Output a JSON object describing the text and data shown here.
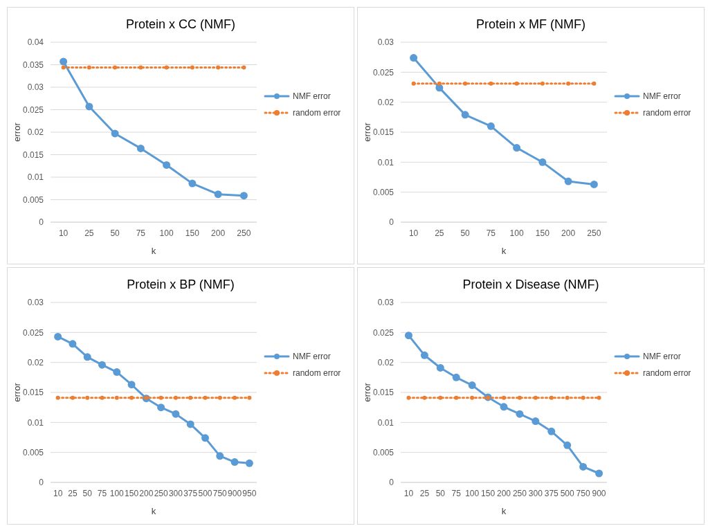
{
  "chart_data": [
    {
      "type": "line",
      "title": "Protein x CC (NMF)",
      "xlabel": "k",
      "ylabel": "error",
      "categories": [
        "10",
        "25",
        "50",
        "75",
        "100",
        "150",
        "200",
        "250"
      ],
      "ylim": [
        0,
        0.04
      ],
      "yticks": [
        0,
        0.005,
        0.01,
        0.015,
        0.02,
        0.025,
        0.03,
        0.035,
        0.04
      ],
      "grid": "y",
      "legend": "right",
      "series": [
        {
          "name": "NMF error",
          "color": "#5b9bd5",
          "marker": "circle",
          "line_style": "solid",
          "values": [
            0.0357,
            0.0257,
            0.0197,
            0.0164,
            0.0127,
            0.0086,
            0.0062,
            0.0059
          ]
        },
        {
          "name": "random error",
          "color": "#ed7d31",
          "marker": "circle",
          "line_style": "dotted",
          "values": [
            0.0344,
            0.0344,
            0.0344,
            0.0344,
            0.0344,
            0.0344,
            0.0344,
            0.0344
          ]
        }
      ]
    },
    {
      "type": "line",
      "title": "Protein x MF (NMF)",
      "xlabel": "k",
      "ylabel": "error",
      "categories": [
        "10",
        "25",
        "50",
        "75",
        "100",
        "150",
        "200",
        "250"
      ],
      "ylim": [
        0,
        0.03
      ],
      "yticks": [
        0,
        0.005,
        0.01,
        0.015,
        0.02,
        0.025,
        0.03
      ],
      "grid": "y",
      "legend": "right",
      "series": [
        {
          "name": "NMF error",
          "color": "#5b9bd5",
          "marker": "circle",
          "line_style": "solid",
          "values": [
            0.0274,
            0.0224,
            0.0179,
            0.016,
            0.0124,
            0.01,
            0.0068,
            0.0063
          ]
        },
        {
          "name": "random error",
          "color": "#ed7d31",
          "marker": "circle",
          "line_style": "dotted",
          "values": [
            0.0231,
            0.0231,
            0.0231,
            0.0231,
            0.0231,
            0.0231,
            0.0231,
            0.0231
          ]
        }
      ]
    },
    {
      "type": "line",
      "title": "Protein x BP (NMF)",
      "xlabel": "k",
      "ylabel": "error",
      "categories": [
        "10",
        "25",
        "50",
        "75",
        "100",
        "150",
        "200",
        "250",
        "300",
        "375",
        "500",
        "750",
        "900",
        "950"
      ],
      "ylim": [
        0,
        0.03
      ],
      "yticks": [
        0,
        0.005,
        0.01,
        0.015,
        0.02,
        0.025,
        0.03
      ],
      "grid": "y",
      "legend": "right",
      "series": [
        {
          "name": "NMF error",
          "color": "#5b9bd5",
          "marker": "circle",
          "line_style": "solid",
          "values": [
            0.0243,
            0.0231,
            0.0209,
            0.0196,
            0.0184,
            0.0163,
            0.014,
            0.0125,
            0.0114,
            0.0097,
            0.0074,
            0.0044,
            0.0034,
            0.0032
          ]
        },
        {
          "name": "random error",
          "color": "#ed7d31",
          "marker": "circle",
          "line_style": "dotted",
          "values": [
            0.0141,
            0.0141,
            0.0141,
            0.0141,
            0.0141,
            0.0141,
            0.0141,
            0.0141,
            0.0141,
            0.0141,
            0.0141,
            0.0141,
            0.0141,
            0.0141
          ]
        }
      ]
    },
    {
      "type": "line",
      "title": "Protein x Disease (NMF)",
      "xlabel": "k",
      "ylabel": "error",
      "categories": [
        "10",
        "25",
        "50",
        "75",
        "100",
        "150",
        "200",
        "250",
        "300",
        "375",
        "500",
        "750",
        "900"
      ],
      "ylim": [
        0,
        0.03
      ],
      "yticks": [
        0,
        0.005,
        0.01,
        0.015,
        0.02,
        0.025,
        0.03
      ],
      "grid": "y",
      "legend": "right",
      "series": [
        {
          "name": "NMF error",
          "color": "#5b9bd5",
          "marker": "circle",
          "line_style": "solid",
          "values": [
            0.0245,
            0.0212,
            0.0191,
            0.0175,
            0.0162,
            0.0142,
            0.0126,
            0.0114,
            0.0102,
            0.0085,
            0.0062,
            0.0026,
            0.0015
          ]
        },
        {
          "name": "random error",
          "color": "#ed7d31",
          "marker": "circle",
          "line_style": "dotted",
          "values": [
            0.0141,
            0.0141,
            0.0141,
            0.0141,
            0.0141,
            0.0141,
            0.0141,
            0.0141,
            0.0141,
            0.0141,
            0.0141,
            0.0141,
            0.0141
          ]
        }
      ]
    }
  ]
}
